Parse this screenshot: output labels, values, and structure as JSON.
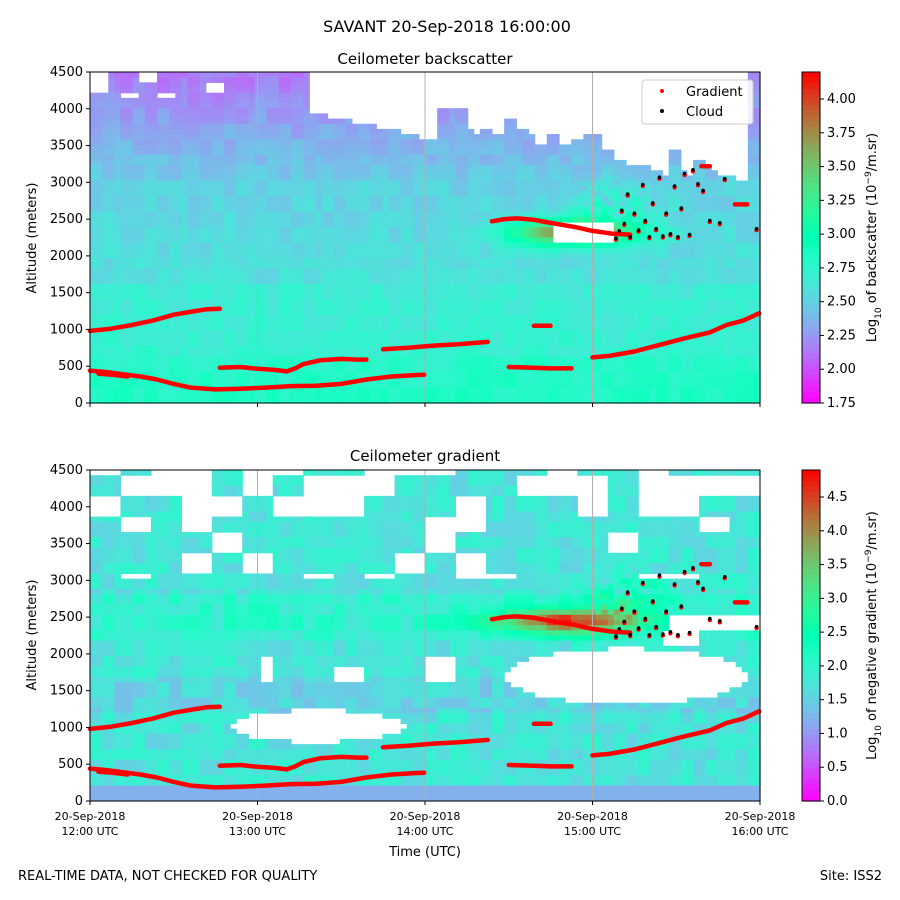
{
  "suptitle": "SAVANT 20-Sep-2018 16:00:00",
  "footer": {
    "left": "REAL-TIME DATA, NOT CHECKED FOR QUALITY",
    "right": "Site: ISS2"
  },
  "chart_data": [
    {
      "type": "heatmap",
      "title": "Ceilometer backscatter",
      "ylabel": "Altitude (meters)",
      "xlabel": "",
      "ylim": [
        0,
        4500
      ],
      "yticks": [
        0,
        500,
        1000,
        1500,
        2000,
        2500,
        3000,
        3500,
        4000,
        4500
      ],
      "ytick_labels": [
        "0",
        "500",
        "1000",
        "1500",
        "2000",
        "2500",
        "3000",
        "3500",
        "4000",
        "4500"
      ],
      "xlim": [
        "20-Sep-2018 12:00 UTC",
        "20-Sep-2018 16:00 UTC"
      ],
      "grid": "vertical lines at hourly ticks",
      "legend": {
        "placement": "top-right",
        "entries": [
          "Gradient",
          "Cloud"
        ],
        "colors": [
          "#ff0000",
          "#000000"
        ]
      },
      "colorbar": {
        "label_html": "Log<tspan baseline-shift=\"sub\" font-size=\"9\">10</tspan> of backscatter (10<tspan baseline-shift=\"super\" font-size=\"9\">−9</tspan>/m.sr)",
        "range": [
          1.75,
          4.2
        ],
        "ticks": [
          1.75,
          2.0,
          2.25,
          2.5,
          2.75,
          3.0,
          3.25,
          3.5,
          3.75,
          4.0
        ],
        "tick_labels": [
          "1.75",
          "2.00",
          "2.25",
          "2.50",
          "2.75",
          "3.00",
          "3.25",
          "3.50",
          "3.75",
          "4.00"
        ],
        "colormap": "rainbow"
      }
    },
    {
      "type": "heatmap",
      "title": "Ceilometer gradient",
      "ylabel": "Altitude (meters)",
      "xlabel": "Time (UTC)",
      "ylim": [
        0,
        4500
      ],
      "yticks": [
        0,
        500,
        1000,
        1500,
        2000,
        2500,
        3000,
        3500,
        4000,
        4500
      ],
      "ytick_labels": [
        "0",
        "500",
        "1000",
        "1500",
        "2000",
        "2500",
        "3000",
        "3500",
        "4000",
        "4500"
      ],
      "xlim": [
        "20-Sep-2018 12:00 UTC",
        "20-Sep-2018 16:00 UTC"
      ],
      "xtick_labels": [
        [
          "20-Sep-2018",
          "12:00 UTC"
        ],
        [
          "20-Sep-2018",
          "13:00 UTC"
        ],
        [
          "20-Sep-2018",
          "14:00 UTC"
        ],
        [
          "20-Sep-2018",
          "15:00 UTC"
        ],
        [
          "20-Sep-2018",
          "16:00 UTC"
        ]
      ],
      "grid": "vertical lines at hourly ticks",
      "colorbar": {
        "label_html": "Log<tspan baseline-shift=\"sub\" font-size=\"9\">10</tspan> of negative gradient (10<tspan baseline-shift=\"super\" font-size=\"9\">−9</tspan>/m.sr)",
        "range": [
          0,
          4.9
        ],
        "ticks": [
          0,
          0.5,
          1.0,
          1.5,
          2.0,
          2.5,
          3.0,
          3.5,
          4.0,
          4.5
        ],
        "tick_labels": [
          "0.0",
          "0.5",
          "1.0",
          "1.5",
          "2.0",
          "2.5",
          "3.0",
          "3.5",
          "4.0",
          "4.5"
        ],
        "colormap": "rainbow"
      }
    }
  ],
  "gradient_layers": [
    {
      "name": "upper-mixed-layer",
      "points": [
        [
          0,
          980
        ],
        [
          0.25,
          1010
        ],
        [
          0.5,
          1060
        ],
        [
          0.75,
          1120
        ],
        [
          1.0,
          1200
        ],
        [
          1.25,
          1250
        ],
        [
          1.4,
          1275
        ],
        [
          1.55,
          1280
        ]
      ]
    },
    {
      "name": "surface-layer",
      "points": [
        [
          0,
          440
        ],
        [
          0.2,
          420
        ],
        [
          0.4,
          390
        ],
        [
          0.6,
          360
        ],
        [
          0.8,
          320
        ],
        [
          1.0,
          260
        ],
        [
          1.2,
          210
        ],
        [
          1.5,
          185
        ],
        [
          1.8,
          195
        ],
        [
          2.1,
          210
        ],
        [
          2.4,
          230
        ],
        [
          2.7,
          235
        ],
        [
          3.0,
          260
        ],
        [
          3.3,
          320
        ],
        [
          3.6,
          360
        ],
        [
          3.9,
          380
        ],
        [
          3.99,
          385
        ]
      ]
    },
    {
      "name": "low-layer-short",
      "points": [
        [
          0.1,
          400
        ],
        [
          0.3,
          380
        ],
        [
          0.45,
          360
        ]
      ]
    },
    {
      "name": "mid-layer-a",
      "points": [
        [
          1.55,
          480
        ],
        [
          1.8,
          490
        ],
        [
          1.95,
          470
        ],
        [
          2.2,
          450
        ],
        [
          2.35,
          430
        ],
        [
          2.45,
          470
        ],
        [
          2.55,
          530
        ],
        [
          2.75,
          580
        ],
        [
          3.0,
          600
        ],
        [
          3.2,
          590
        ],
        [
          3.3,
          590
        ]
      ]
    },
    {
      "name": "mid-layer-b",
      "points": [
        [
          3.5,
          730
        ],
        [
          3.8,
          750
        ],
        [
          4.1,
          780
        ],
        [
          4.4,
          800
        ],
        [
          4.75,
          830
        ]
      ]
    },
    {
      "name": "mid-layer-c",
      "points": [
        [
          5.0,
          490
        ],
        [
          5.3,
          480
        ],
        [
          5.5,
          470
        ],
        [
          5.75,
          470
        ]
      ]
    },
    {
      "name": "ramp-layer",
      "points": [
        [
          6.0,
          620
        ],
        [
          6.2,
          640
        ],
        [
          6.5,
          700
        ],
        [
          6.8,
          790
        ],
        [
          7.1,
          880
        ],
        [
          7.4,
          960
        ],
        [
          7.6,
          1060
        ],
        [
          7.8,
          1120
        ],
        [
          7.99,
          1220
        ]
      ]
    },
    {
      "name": "short-1050",
      "points": [
        [
          5.3,
          1050
        ],
        [
          5.5,
          1050
        ]
      ]
    },
    {
      "name": "elevated-layer",
      "points": [
        [
          4.8,
          2470
        ],
        [
          4.95,
          2500
        ],
        [
          5.1,
          2510
        ],
        [
          5.3,
          2490
        ],
        [
          5.45,
          2460
        ],
        [
          5.6,
          2430
        ],
        [
          5.8,
          2390
        ],
        [
          6.0,
          2340
        ],
        [
          6.25,
          2300
        ],
        [
          6.45,
          2290
        ]
      ]
    },
    {
      "name": "upper-short-3220",
      "points": [
        [
          7.3,
          3220
        ],
        [
          7.4,
          3220
        ]
      ]
    },
    {
      "name": "upper-short-2700",
      "points": [
        [
          7.7,
          2700
        ],
        [
          7.85,
          2700
        ]
      ]
    }
  ],
  "cloud_points": [
    [
      6.28,
      2220
    ],
    [
      6.32,
      2320
    ],
    [
      6.35,
      2600
    ],
    [
      6.38,
      2420
    ],
    [
      6.42,
      2820
    ],
    [
      6.45,
      2240
    ],
    [
      6.5,
      2560
    ],
    [
      6.55,
      2330
    ],
    [
      6.6,
      2950
    ],
    [
      6.63,
      2460
    ],
    [
      6.68,
      2240
    ],
    [
      6.72,
      2700
    ],
    [
      6.76,
      2350
    ],
    [
      6.8,
      3050
    ],
    [
      6.84,
      2250
    ],
    [
      6.88,
      2560
    ],
    [
      6.93,
      2280
    ],
    [
      6.98,
      2930
    ],
    [
      7.02,
      2240
    ],
    [
      7.06,
      2630
    ],
    [
      7.1,
      3100
    ],
    [
      7.16,
      2270
    ],
    [
      7.2,
      3150
    ],
    [
      7.26,
      2960
    ],
    [
      7.32,
      2870
    ],
    [
      7.4,
      2460
    ],
    [
      7.52,
      2430
    ],
    [
      7.58,
      3030
    ],
    [
      7.96,
      2350
    ]
  ]
}
